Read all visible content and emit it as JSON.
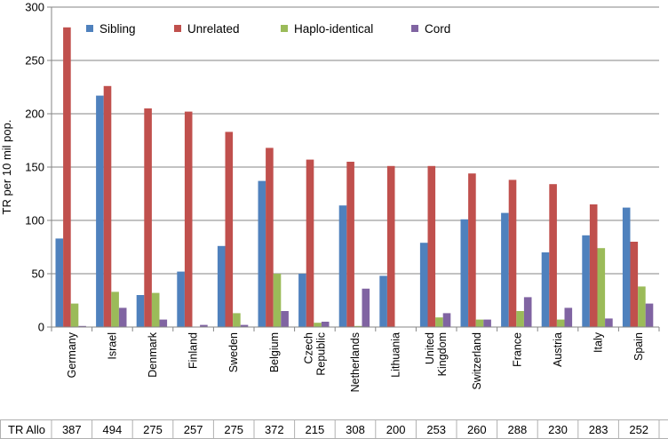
{
  "chart_data": {
    "type": "bar",
    "title": "",
    "xlabel": "",
    "ylabel": "TR per 10 mil pop.",
    "ylim": [
      0,
      300
    ],
    "yticks": [
      0,
      50,
      100,
      150,
      200,
      250,
      300
    ],
    "legend_position": "top",
    "categories": [
      "Germany",
      "Israel",
      "Denmark",
      "Finland",
      "Sweden",
      "Belgium",
      "Czech Republic",
      "Netherlands",
      "Lithuania",
      "United Kingdom",
      "Switzerland",
      "France",
      "Austria",
      "Italy",
      "Spain"
    ],
    "category_lines": [
      [
        "Germany"
      ],
      [
        "Israel"
      ],
      [
        "Denmark"
      ],
      [
        "Finland"
      ],
      [
        "Sweden"
      ],
      [
        "Belgium"
      ],
      [
        "Czech",
        "Republic"
      ],
      [
        "Netherlands"
      ],
      [
        "Lithuania"
      ],
      [
        "United",
        "Kingdom"
      ],
      [
        "Switzerland"
      ],
      [
        "France"
      ],
      [
        "Austria"
      ],
      [
        "Italy"
      ],
      [
        "Spain"
      ]
    ],
    "series": [
      {
        "name": "Sibling",
        "color": "#4F81BD",
        "values": [
          83,
          217,
          30,
          52,
          76,
          137,
          50,
          114,
          48,
          79,
          101,
          107,
          70,
          86,
          112
        ]
      },
      {
        "name": "Unrelated",
        "color": "#C0504D",
        "values": [
          281,
          226,
          205,
          202,
          183,
          168,
          157,
          155,
          151,
          151,
          144,
          138,
          134,
          115,
          80
        ]
      },
      {
        "name": "Haplo-identical",
        "color": "#9BBB59",
        "values": [
          22,
          33,
          32,
          0,
          13,
          50,
          4,
          1,
          0,
          9,
          7,
          15,
          7,
          74,
          38
        ]
      },
      {
        "name": "Cord",
        "color": "#8064A2",
        "values": [
          1,
          18,
          7,
          2,
          2,
          15,
          5,
          36,
          0,
          13,
          7,
          28,
          18,
          8,
          22
        ]
      }
    ],
    "tr_row": {
      "label": "TR Allo",
      "values": [
        "387",
        "494",
        "275",
        "257",
        "275",
        "372",
        "215",
        "308",
        "200",
        "253",
        "260",
        "288",
        "230",
        "283",
        "252"
      ]
    }
  }
}
